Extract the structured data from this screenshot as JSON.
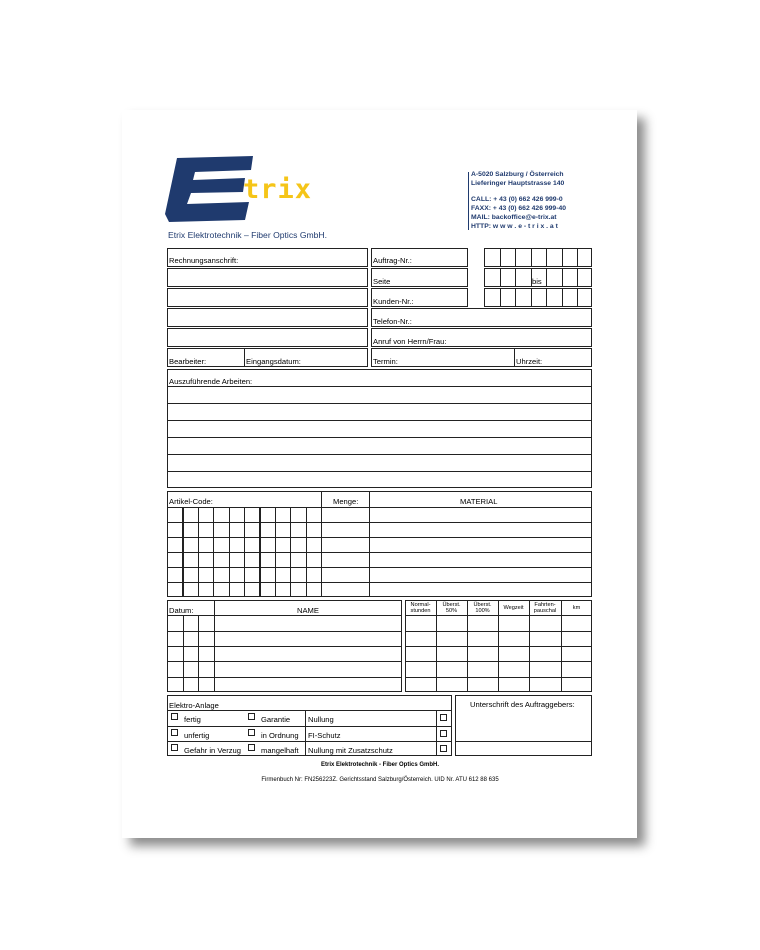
{
  "logo": {
    "letter": "E",
    "rest": "trix",
    "navy": "#1f3a6e",
    "yellow": "#f5c518"
  },
  "company_tagline": "Etrix Elektrotechnik – Fiber Optics GmbH.",
  "address": {
    "line1": "A-5020 Salzburg / Österreich",
    "line2": "Lieferinger Hauptstrasse 140",
    "call": "CALL:  + 43 (0) 662 426 999-0",
    "fax": "FAXX:  + 43 (0) 662 426 999-40",
    "mail": "MAIL:  backoffice@e-trix.at",
    "http": "HTTP:  w w w . e - t r i x . a t"
  },
  "form": {
    "rechnungsanschrift": "Rechnungsanschrift:",
    "auftrag_nr": "Auftrag-Nr.:",
    "seite": "Seite",
    "bis": "bis",
    "kunden_nr": "Kunden-Nr.:",
    "telefon_nr": "Telefon-Nr.:",
    "anruf": "Anruf von Herrn/Frau:",
    "bearbeiter": "Bearbeiter:",
    "eingangsdatum": "Eingangsdatum:",
    "termin": "Termin:",
    "uhrzeit": "Uhrzeit:",
    "arbeiten": "Auszuführende Arbeiten:",
    "artikel_code": "Artikel-Code:",
    "menge": "Menge:",
    "material": "MATERIAL",
    "datum": "Datum:",
    "name": "NAME",
    "time_headers": [
      "Normal-\nstunden",
      "Überst.\n50%",
      "Überst.\n100%",
      "Wegzeit",
      "Fahrten-\npauschal",
      "km"
    ],
    "elektro_anlage": "Elektro-Anlage",
    "status_a": [
      "fertig",
      "unfertig",
      "Gefahr in Verzug"
    ],
    "status_b": [
      "Garantie",
      "in Ordnung",
      "mangelhaft"
    ],
    "checks": [
      "Nullung",
      "FI-Schutz",
      "Nullung mit Zusatzschutz"
    ],
    "unterschrift": "Unterschrift des Auftraggebers:"
  },
  "footer": {
    "company": "Etrix Elektrotechnik - Fiber Optics GmbH.",
    "legal": "Firmenbuch Nr: FN256223Z. Gerichtsstand Salzburg/Österreich. UID Nr. ATU 612 88 635"
  }
}
